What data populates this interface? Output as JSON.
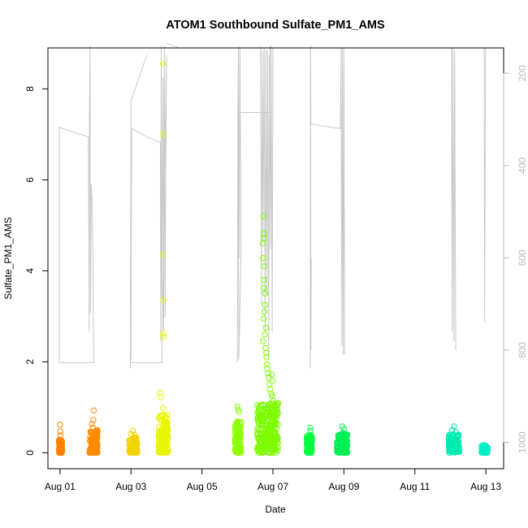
{
  "chart_data": {
    "type": "scatter",
    "title": "ATOM1 Southbound Sulfate_PM1_AMS",
    "xlabel": "Date",
    "ylabel": "Sulfate_PM1_AMS",
    "x_ticks": [
      "Aug 01",
      "Aug 03",
      "Aug 05",
      "Aug 07",
      "Aug 09",
      "Aug 11",
      "Aug 13"
    ],
    "x_tick_days": [
      1,
      3,
      5,
      7,
      9,
      11,
      13
    ],
    "xlim_days": [
      0.66,
      13.5
    ],
    "y_ticks": [
      0,
      2,
      4,
      6,
      8
    ],
    "ylim": [
      -0.35,
      8.9
    ],
    "right_axis": {
      "ticks": [
        "200",
        "400",
        "600",
        "800",
        "1000"
      ],
      "tick_values": [
        200,
        400,
        600,
        800,
        1000
      ],
      "lim_top": 145,
      "lim_bottom": 1057,
      "color": "#b8b8b8"
    },
    "line_color": "#c8c8c8",
    "series": [
      {
        "day_start": 0.97,
        "day_end": 1.06,
        "ymax": 0.3,
        "color": "#ff8000",
        "extra": [
          [
            1.0,
            0.62
          ],
          [
            1.01,
            0.47
          ],
          [
            1.02,
            0.38
          ]
        ]
      },
      {
        "day_start": 1.83,
        "day_end": 2.06,
        "ymax": 0.5,
        "color": "#ff8c00",
        "extra": [
          [
            1.95,
            0.93
          ],
          [
            1.94,
            0.72
          ],
          [
            1.9,
            0.63
          ],
          [
            1.92,
            0.55
          ]
        ]
      },
      {
        "day_start": 2.95,
        "day_end": 3.18,
        "ymax": 0.35,
        "color": "#f2d400",
        "extra": [
          [
            3.05,
            0.48
          ],
          [
            3.0,
            0.42
          ],
          [
            3.1,
            0.4
          ]
        ]
      },
      {
        "day_start": 3.78,
        "day_end": 4.05,
        "ymax": 0.85,
        "color": "#e8f500",
        "extra": [
          [
            3.82,
            1.32
          ],
          [
            3.84,
            1.22
          ],
          [
            3.9,
            0.98
          ],
          [
            3.92,
            2.55
          ],
          [
            3.9,
            2.62
          ],
          [
            3.91,
            3.35
          ],
          [
            3.9,
            4.35
          ],
          [
            3.91,
            7.0
          ],
          [
            3.9,
            8.55
          ]
        ]
      },
      {
        "day_start": 5.93,
        "day_end": 6.1,
        "ymax": 0.7,
        "color": "#8cff00",
        "extra": [
          [
            6.0,
            1.02
          ],
          [
            6.02,
            0.95
          ],
          [
            6.04,
            0.9
          ]
        ]
      },
      {
        "day_start": 6.55,
        "day_end": 7.15,
        "ymax": 1.1,
        "color": "#7cfc00",
        "extra": [
          [
            6.73,
            5.2
          ],
          [
            6.74,
            4.82
          ],
          [
            6.76,
            4.72
          ],
          [
            6.71,
            4.6
          ],
          [
            6.72,
            4.28
          ],
          [
            6.75,
            3.8
          ],
          [
            6.78,
            3.5
          ],
          [
            6.77,
            3.25
          ],
          [
            6.76,
            3.1
          ],
          [
            6.74,
            2.95
          ],
          [
            6.8,
            2.75
          ],
          [
            6.77,
            2.6
          ],
          [
            6.79,
            2.3
          ],
          [
            6.81,
            2.2
          ],
          [
            6.83,
            1.95
          ],
          [
            6.86,
            1.75
          ],
          [
            6.88,
            1.65
          ],
          [
            6.9,
            1.5
          ],
          [
            6.92,
            1.4
          ],
          [
            6.95,
            1.3
          ],
          [
            6.98,
            1.25
          ],
          [
            7.0,
            1.15
          ],
          [
            6.99,
            1.58
          ],
          [
            6.97,
            1.72
          ],
          [
            6.84,
            1.85
          ],
          [
            6.82,
            2.1
          ],
          [
            6.74,
            3.62
          ],
          [
            6.76,
            4.1
          ],
          [
            6.72,
            2.45
          ]
        ]
      },
      {
        "day_start": 7.95,
        "day_end": 8.1,
        "ymax": 0.4,
        "color": "#00ff40",
        "extra": [
          [
            8.05,
            0.55
          ],
          [
            8.06,
            0.48
          ]
        ]
      },
      {
        "day_start": 8.8,
        "day_end": 9.1,
        "ymax": 0.45,
        "color": "#00f055",
        "extra": [
          [
            8.95,
            0.58
          ],
          [
            9.0,
            0.52
          ]
        ]
      },
      {
        "day_start": 11.95,
        "day_end": 12.25,
        "ymax": 0.4,
        "color": "#00ebb4",
        "extra": [
          [
            12.1,
            0.58
          ],
          [
            12.05,
            0.5
          ],
          [
            12.15,
            0.46
          ]
        ]
      },
      {
        "day_start": 12.88,
        "day_end": 13.05,
        "ymax": 0.17,
        "color": "#00f0c8",
        "extra": []
      }
    ],
    "grid": false,
    "legend": "none"
  }
}
